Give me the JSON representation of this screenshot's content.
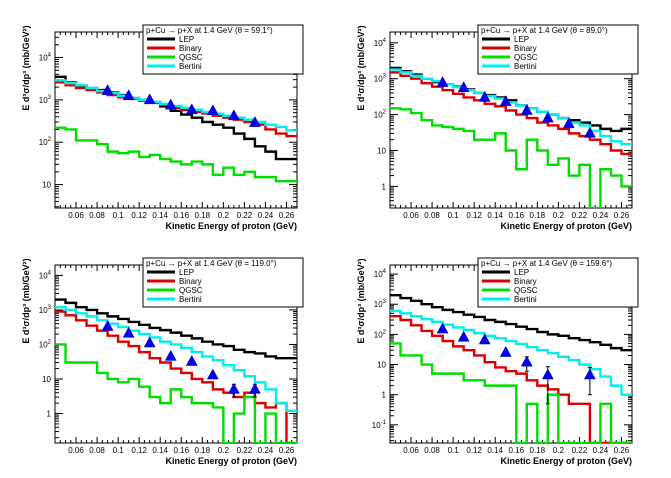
{
  "chart_data": [
    {
      "type": "line",
      "title": "p+Cu → p+X at 1.4 GeV (θ =  59.1°)",
      "xlabel": "Kinetic Energy of proton (GeV)",
      "ylabel": "E d³σ/dp³ (mb/GeV²)",
      "xlim": [
        0.04,
        0.27
      ],
      "ylim": [
        2.8,
        40000
      ],
      "yscale": "log",
      "xticks": [
        "0.06",
        "0.08",
        "0.1",
        "0.12",
        "0.14",
        "0.16",
        "0.18",
        "0.2",
        "0.22",
        "0.24",
        "0.26"
      ],
      "yticks": [
        {
          "value": 10,
          "base": "10",
          "exp": ""
        },
        {
          "value": 100,
          "base": "10",
          "exp": "2"
        },
        {
          "value": 1000,
          "base": "10",
          "exp": "3"
        },
        {
          "value": 10000,
          "base": "10",
          "exp": "4"
        }
      ],
      "legend": [
        {
          "label": "LEP",
          "color": "#000000"
        },
        {
          "label": "Binary",
          "color": "#dd0000"
        },
        {
          "label": "QGSC",
          "color": "#00dd00"
        },
        {
          "label": "Bertini",
          "color": "#00eeee"
        }
      ],
      "bin_edges": [
        0.04,
        0.05,
        0.06,
        0.07,
        0.08,
        0.09,
        0.1,
        0.11,
        0.12,
        0.13,
        0.14,
        0.15,
        0.16,
        0.17,
        0.18,
        0.19,
        0.2,
        0.21,
        0.22,
        0.23,
        0.24,
        0.25,
        0.26,
        0.27
      ],
      "series": [
        {
          "name": "LEP",
          "color": "#000000",
          "values": [
            3500,
            2600,
            2100,
            1900,
            1700,
            1500,
            1300,
            1100,
            1000,
            850,
            700,
            550,
            450,
            380,
            300,
            260,
            220,
            160,
            120,
            80,
            60,
            40,
            40
          ]
        },
        {
          "name": "Binary",
          "color": "#dd0000",
          "values": [
            2600,
            2200,
            1900,
            1700,
            1500,
            1300,
            1150,
            1050,
            950,
            850,
            750,
            650,
            580,
            520,
            480,
            420,
            380,
            340,
            300,
            260,
            200,
            160,
            140
          ]
        },
        {
          "name": "QGSC",
          "color": "#00dd00",
          "values": [
            220,
            200,
            110,
            110,
            90,
            60,
            55,
            60,
            45,
            50,
            40,
            35,
            30,
            35,
            30,
            17,
            25,
            17,
            20,
            15,
            15,
            12,
            12
          ]
        },
        {
          "name": "Bertini",
          "color": "#00eeee",
          "values": [
            2900,
            2500,
            2200,
            1900,
            1600,
            1450,
            1250,
            1100,
            1000,
            900,
            800,
            720,
            650,
            580,
            520,
            470,
            420,
            380,
            340,
            300,
            260,
            230,
            190
          ]
        }
      ],
      "points": {
        "x": [
          0.09,
          0.11,
          0.13,
          0.15,
          0.17,
          0.19,
          0.21,
          0.23
        ],
        "y": [
          1650,
          1250,
          1000,
          750,
          580,
          550,
          420,
          290
        ],
        "err": [
          0,
          0,
          0,
          0,
          0,
          0,
          0,
          0
        ]
      }
    },
    {
      "type": "line",
      "title": "p+Cu → p+X at 1.4 GeV (θ =  89.0°)",
      "xlabel": "Kinetic Energy of proton (GeV)",
      "ylabel": "E d³σ/dp³ (mb/GeV²)",
      "xlim": [
        0.04,
        0.27
      ],
      "ylim": [
        0.25,
        20000
      ],
      "yscale": "log",
      "xticks": [
        "0.06",
        "0.08",
        "0.1",
        "0.12",
        "0.14",
        "0.16",
        "0.18",
        "0.2",
        "0.22",
        "0.24",
        "0.26"
      ],
      "yticks": [
        {
          "value": 1,
          "base": "1",
          "exp": ""
        },
        {
          "value": 10,
          "base": "10",
          "exp": ""
        },
        {
          "value": 100,
          "base": "10",
          "exp": "2"
        },
        {
          "value": 1000,
          "base": "10",
          "exp": "3"
        },
        {
          "value": 10000,
          "base": "10",
          "exp": "4"
        }
      ],
      "legend": [
        {
          "label": "LEP",
          "color": "#000000"
        },
        {
          "label": "Binary",
          "color": "#dd0000"
        },
        {
          "label": "QGSC",
          "color": "#00dd00"
        },
        {
          "label": "Bertini",
          "color": "#00eeee"
        }
      ],
      "bin_edges": [
        0.04,
        0.05,
        0.06,
        0.07,
        0.08,
        0.09,
        0.1,
        0.11,
        0.12,
        0.13,
        0.14,
        0.15,
        0.16,
        0.17,
        0.18,
        0.19,
        0.2,
        0.21,
        0.22,
        0.23,
        0.24,
        0.25,
        0.26,
        0.27
      ],
      "series": [
        {
          "name": "LEP",
          "color": "#000000",
          "values": [
            2000,
            1600,
            1300,
            1000,
            800,
            700,
            600,
            500,
            400,
            350,
            300,
            250,
            180,
            150,
            120,
            100,
            80,
            70,
            60,
            50,
            40,
            35,
            40
          ]
        },
        {
          "name": "Binary",
          "color": "#dd0000",
          "values": [
            1500,
            1200,
            1000,
            750,
            600,
            480,
            380,
            300,
            250,
            200,
            170,
            130,
            100,
            80,
            60,
            50,
            40,
            30,
            25,
            20,
            15,
            10,
            8
          ]
        },
        {
          "name": "QGSC",
          "color": "#00dd00",
          "values": [
            150,
            140,
            110,
            70,
            50,
            45,
            40,
            35,
            20,
            20,
            30,
            10,
            3,
            20,
            10,
            4,
            6,
            2,
            4,
            0.25,
            3,
            2,
            1
          ]
        },
        {
          "name": "Bertini",
          "color": "#00eeee",
          "values": [
            1800,
            1500,
            1200,
            1000,
            850,
            700,
            580,
            480,
            400,
            330,
            280,
            220,
            180,
            150,
            120,
            100,
            80,
            60,
            50,
            35,
            25,
            18,
            15
          ]
        }
      ],
      "points": {
        "x": [
          0.09,
          0.11,
          0.13,
          0.15,
          0.17,
          0.19,
          0.21,
          0.23
        ],
        "y": [
          780,
          560,
          300,
          230,
          130,
          80,
          55,
          30
        ],
        "err": [
          0,
          0,
          0,
          0,
          0,
          0,
          0,
          0
        ]
      }
    },
    {
      "type": "line",
      "title": "p+Cu → p+X at 1.4 GeV (θ = 119.0°)",
      "xlabel": "Kinetic Energy of proton (GeV)",
      "ylabel": "E d³σ/dp³ (mb/GeV²)",
      "xlim": [
        0.04,
        0.27
      ],
      "ylim": [
        0.14,
        20000
      ],
      "yscale": "log",
      "xticks": [
        "0.06",
        "0.08",
        "0.1",
        "0.12",
        "0.14",
        "0.16",
        "0.18",
        "0.2",
        "0.22",
        "0.24",
        "0.26"
      ],
      "yticks": [
        {
          "value": 1,
          "base": "1",
          "exp": ""
        },
        {
          "value": 10,
          "base": "10",
          "exp": ""
        },
        {
          "value": 100,
          "base": "10",
          "exp": "2"
        },
        {
          "value": 1000,
          "base": "10",
          "exp": "3"
        },
        {
          "value": 10000,
          "base": "10",
          "exp": "4"
        }
      ],
      "legend": [
        {
          "label": "LEP",
          "color": "#000000"
        },
        {
          "label": "Binary",
          "color": "#dd0000"
        },
        {
          "label": "QGSC",
          "color": "#00dd00"
        },
        {
          "label": "Bertini",
          "color": "#00eeee"
        }
      ],
      "bin_edges": [
        0.04,
        0.05,
        0.06,
        0.07,
        0.08,
        0.09,
        0.1,
        0.11,
        0.12,
        0.13,
        0.14,
        0.15,
        0.16,
        0.17,
        0.18,
        0.19,
        0.2,
        0.21,
        0.22,
        0.23,
        0.24,
        0.25,
        0.26,
        0.27
      ],
      "series": [
        {
          "name": "LEP",
          "color": "#000000",
          "values": [
            2000,
            1600,
            1200,
            1000,
            800,
            650,
            550,
            450,
            370,
            300,
            260,
            220,
            180,
            150,
            120,
            100,
            90,
            70,
            60,
            55,
            45,
            40,
            40
          ]
        },
        {
          "name": "Binary",
          "color": "#dd0000",
          "values": [
            900,
            700,
            500,
            350,
            250,
            180,
            120,
            90,
            60,
            40,
            30,
            20,
            15,
            10,
            8,
            5,
            4,
            3,
            4,
            2,
            1.5,
            2,
            0.14
          ]
        },
        {
          "name": "QGSC",
          "color": "#00dd00",
          "values": [
            100,
            30,
            30,
            30,
            15,
            10,
            8,
            10,
            6,
            3,
            2,
            5,
            3,
            2,
            2,
            1.5,
            0.14,
            1,
            3,
            0.14,
            1,
            0.14,
            0.14
          ]
        },
        {
          "name": "Bertini",
          "color": "#00eeee",
          "values": [
            1200,
            1000,
            800,
            650,
            500,
            400,
            320,
            250,
            200,
            160,
            120,
            100,
            80,
            60,
            45,
            35,
            25,
            18,
            12,
            8,
            5,
            2,
            1.2
          ]
        }
      ],
      "points": {
        "x": [
          0.09,
          0.11,
          0.13,
          0.15,
          0.17,
          0.19,
          0.21,
          0.23
        ],
        "y": [
          330,
          210,
          110,
          45,
          32,
          13,
          5,
          5
        ],
        "err": [
          0,
          0,
          0,
          0,
          0,
          0,
          2,
          2
        ]
      }
    },
    {
      "type": "line",
      "title": "p+Cu → p+X at 1.4 GeV (θ = 159.6°)",
      "xlabel": "Kinetic Energy of proton (GeV)",
      "ylabel": "E d³σ/dp³ (mb/GeV²)",
      "xlim": [
        0.04,
        0.27
      ],
      "ylim": [
        0.025,
        20000
      ],
      "yscale": "log",
      "xticks": [
        "0.06",
        "0.08",
        "0.1",
        "0.12",
        "0.14",
        "0.16",
        "0.18",
        "0.2",
        "0.22",
        "0.24",
        "0.26"
      ],
      "yticks": [
        {
          "value": 0.1,
          "base": "10",
          "exp": "-1"
        },
        {
          "value": 1,
          "base": "1",
          "exp": ""
        },
        {
          "value": 10,
          "base": "10",
          "exp": ""
        },
        {
          "value": 100,
          "base": "10",
          "exp": "2"
        },
        {
          "value": 1000,
          "base": "10",
          "exp": "3"
        },
        {
          "value": 10000,
          "base": "10",
          "exp": "4"
        }
      ],
      "legend": [
        {
          "label": "LEP",
          "color": "#000000"
        },
        {
          "label": "Binary",
          "color": "#dd0000"
        },
        {
          "label": "QGSC",
          "color": "#00dd00"
        },
        {
          "label": "Bertini",
          "color": "#00eeee"
        }
      ],
      "bin_edges": [
        0.04,
        0.05,
        0.06,
        0.07,
        0.08,
        0.09,
        0.1,
        0.11,
        0.12,
        0.13,
        0.14,
        0.15,
        0.16,
        0.17,
        0.18,
        0.19,
        0.2,
        0.21,
        0.22,
        0.23,
        0.24,
        0.25,
        0.26,
        0.27
      ],
      "series": [
        {
          "name": "LEP",
          "color": "#000000",
          "values": [
            2000,
            1600,
            1300,
            1000,
            800,
            650,
            550,
            450,
            380,
            300,
            260,
            220,
            180,
            150,
            120,
            100,
            90,
            75,
            65,
            55,
            45,
            35,
            30
          ]
        },
        {
          "name": "Binary",
          "color": "#dd0000",
          "values": [
            400,
            300,
            200,
            130,
            90,
            60,
            40,
            30,
            20,
            12,
            8,
            6,
            5,
            3,
            2,
            1.5,
            1,
            0.5,
            0.5,
            0.025,
            0.025,
            0.025,
            0.025
          ]
        },
        {
          "name": "QGSC",
          "color": "#00dd00",
          "values": [
            50,
            20,
            20,
            10,
            5,
            5,
            5,
            3,
            3,
            2,
            2,
            2,
            0.025,
            0.5,
            0.025,
            1,
            0.025,
            0.025,
            0.025,
            0.025,
            0.5,
            0.025,
            0.025
          ]
        },
        {
          "name": "Bertini",
          "color": "#00eeee",
          "values": [
            600,
            500,
            400,
            320,
            260,
            210,
            170,
            140,
            110,
            90,
            75,
            60,
            48,
            38,
            30,
            24,
            18,
            14,
            10,
            7,
            4,
            2,
            1
          ]
        }
      ],
      "points": {
        "x": [
          0.09,
          0.11,
          0.13,
          0.15,
          0.17,
          0.19,
          0.21,
          0.23
        ],
        "y": [
          150,
          80,
          65,
          25,
          12,
          4.5,
          0,
          4.5
        ],
        "err": [
          0,
          0,
          0,
          0,
          6,
          4,
          0,
          3.5
        ]
      }
    }
  ]
}
